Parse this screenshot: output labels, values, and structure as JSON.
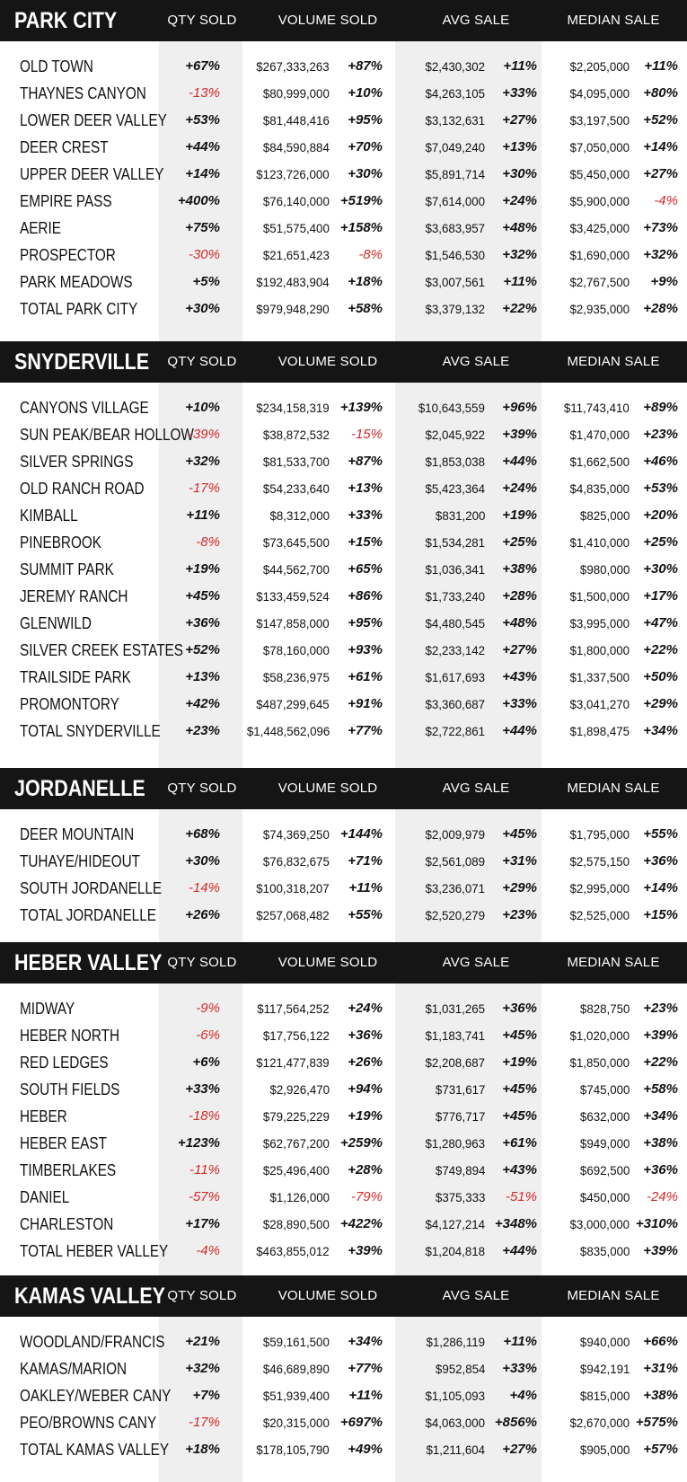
{
  "headers": {
    "qty": "QTY SOLD",
    "volume": "VOLUME SOLD",
    "avg": "AVG SALE",
    "median": "MEDIAN SALE"
  },
  "colors": {
    "header_bg": "#151515",
    "stripe": "#efefef",
    "negative": "#d42a2a"
  },
  "sections": [
    {
      "title": "PARK CITY",
      "rows": [
        {
          "name": "OLD TOWN",
          "qty": "+67%",
          "vol": "$267,333,263",
          "volp": "+87%",
          "avg": "$2,430,302",
          "avgp": "+11%",
          "med": "$2,205,000",
          "medp": "+11%"
        },
        {
          "name": "THAYNES CANYON",
          "qty": "-13%",
          "vol": "$80,999,000",
          "volp": "+10%",
          "avg": "$4,263,105",
          "avgp": "+33%",
          "med": "$4,095,000",
          "medp": "+80%"
        },
        {
          "name": "LOWER DEER VALLEY",
          "qty": "+53%",
          "vol": "$81,448,416",
          "volp": "+95%",
          "avg": "$3,132,631",
          "avgp": "+27%",
          "med": "$3,197,500",
          "medp": "+52%"
        },
        {
          "name": "DEER CREST",
          "qty": "+44%",
          "vol": "$84,590,884",
          "volp": "+70%",
          "avg": "$7,049,240",
          "avgp": "+13%",
          "med": "$7,050,000",
          "medp": "+14%"
        },
        {
          "name": "UPPER DEER VALLEY",
          "qty": "+14%",
          "vol": "$123,726,000",
          "volp": "+30%",
          "avg": "$5,891,714",
          "avgp": "+30%",
          "med": "$5,450,000",
          "medp": "+27%"
        },
        {
          "name": "EMPIRE PASS",
          "qty": "+400%",
          "vol": "$76,140,000",
          "volp": "+519%",
          "avg": "$7,614,000",
          "avgp": "+24%",
          "med": "$5,900,000",
          "medp": "-4%"
        },
        {
          "name": "AERIE",
          "qty": "+75%",
          "vol": "$51,575,400",
          "volp": "+158%",
          "avg": "$3,683,957",
          "avgp": "+48%",
          "med": "$3,425,000",
          "medp": "+73%"
        },
        {
          "name": "PROSPECTOR",
          "qty": "-30%",
          "vol": "$21,651,423",
          "volp": "-8%",
          "avg": "$1,546,530",
          "avgp": "+32%",
          "med": "$1,690,000",
          "medp": "+32%"
        },
        {
          "name": "PARK MEADOWS",
          "qty": "+5%",
          "vol": "$192,483,904",
          "volp": "+18%",
          "avg": "$3,007,561",
          "avgp": "+11%",
          "med": "$2,767,500",
          "medp": "+9%"
        },
        {
          "name": "TOTAL PARK CITY",
          "qty": "+30%",
          "vol": "$979,948,290",
          "volp": "+58%",
          "avg": "$3,379,132",
          "avgp": "+22%",
          "med": "$2,935,000",
          "medp": "+28%"
        }
      ]
    },
    {
      "title": "SNYDERVILLE",
      "rows": [
        {
          "name": "CANYONS VILLAGE",
          "qty": "+10%",
          "vol": "$234,158,319",
          "volp": "+139%",
          "avg": "$10,643,559",
          "avgp": "+96%",
          "med": "$11,743,410",
          "medp": "+89%"
        },
        {
          "name": "SUN PEAK/BEAR HOLLOW",
          "qty": "-39%",
          "vol": "$38,872,532",
          "volp": "-15%",
          "avg": "$2,045,922",
          "avgp": "+39%",
          "med": "$1,470,000",
          "medp": "+23%"
        },
        {
          "name": "SILVER SPRINGS",
          "qty": "+32%",
          "vol": "$81,533,700",
          "volp": "+87%",
          "avg": "$1,853,038",
          "avgp": "+44%",
          "med": "$1,662,500",
          "medp": "+46%"
        },
        {
          "name": "OLD RANCH ROAD",
          "qty": "-17%",
          "vol": "$54,233,640",
          "volp": "+13%",
          "avg": "$5,423,364",
          "avgp": "+24%",
          "med": "$4,835,000",
          "medp": "+53%"
        },
        {
          "name": "KIMBALL",
          "qty": "+11%",
          "vol": "$8,312,000",
          "volp": "+33%",
          "avg": "$831,200",
          "avgp": "+19%",
          "med": "$825,000",
          "medp": "+20%"
        },
        {
          "name": "PINEBROOK",
          "qty": "-8%",
          "vol": "$73,645,500",
          "volp": "+15%",
          "avg": "$1,534,281",
          "avgp": "+25%",
          "med": "$1,410,000",
          "medp": "+25%"
        },
        {
          "name": "SUMMIT PARK",
          "qty": "+19%",
          "vol": "$44,562,700",
          "volp": "+65%",
          "avg": "$1,036,341",
          "avgp": "+38%",
          "med": "$980,000",
          "medp": "+30%"
        },
        {
          "name": "JEREMY RANCH",
          "qty": "+45%",
          "vol": "$133,459,524",
          "volp": "+86%",
          "avg": "$1,733,240",
          "avgp": "+28%",
          "med": "$1,500,000",
          "medp": "+17%"
        },
        {
          "name": "GLENWILD",
          "qty": "+36%",
          "vol": "$147,858,000",
          "volp": "+95%",
          "avg": "$4,480,545",
          "avgp": "+48%",
          "med": "$3,995,000",
          "medp": "+47%"
        },
        {
          "name": "SILVER CREEK ESTATES",
          "qty": "+52%",
          "vol": "$78,160,000",
          "volp": "+93%",
          "avg": "$2,233,142",
          "avgp": "+27%",
          "med": "$1,800,000",
          "medp": "+22%"
        },
        {
          "name": "TRAILSIDE PARK",
          "qty": "+13%",
          "vol": "$58,236,975",
          "volp": "+61%",
          "avg": "$1,617,693",
          "avgp": "+43%",
          "med": "$1,337,500",
          "medp": "+50%"
        },
        {
          "name": "PROMONTORY",
          "qty": "+42%",
          "vol": "$487,299,645",
          "volp": "+91%",
          "avg": "$3,360,687",
          "avgp": "+33%",
          "med": "$3,041,270",
          "medp": "+29%"
        },
        {
          "name": "TOTAL SNYDERVILLE",
          "qty": "+23%",
          "vol": "$1,448,562,096",
          "volp": "+77%",
          "avg": "$2,722,861",
          "avgp": "+44%",
          "med": "$1,898,475",
          "medp": "+34%"
        }
      ]
    },
    {
      "title": "JORDANELLE",
      "rows": [
        {
          "name": "DEER MOUNTAIN",
          "qty": "+68%",
          "vol": "$74,369,250",
          "volp": "+144%",
          "avg": "$2,009,979",
          "avgp": "+45%",
          "med": "$1,795,000",
          "medp": "+55%"
        },
        {
          "name": "TUHAYE/HIDEOUT",
          "qty": "+30%",
          "vol": "$76,832,675",
          "volp": "+71%",
          "avg": "$2,561,089",
          "avgp": "+31%",
          "med": "$2,575,150",
          "medp": "+36%"
        },
        {
          "name": "SOUTH JORDANELLE",
          "qty": "-14%",
          "vol": "$100,318,207",
          "volp": "+11%",
          "avg": "$3,236,071",
          "avgp": "+29%",
          "med": "$2,995,000",
          "medp": "+14%"
        },
        {
          "name": "TOTAL JORDANELLE",
          "qty": "+26%",
          "vol": "$257,068,482",
          "volp": "+55%",
          "avg": "$2,520,279",
          "avgp": "+23%",
          "med": "$2,525,000",
          "medp": "+15%"
        }
      ]
    },
    {
      "title": "HEBER VALLEY",
      "rows": [
        {
          "name": "MIDWAY",
          "qty": "-9%",
          "vol": "$117,564,252",
          "volp": "+24%",
          "avg": "$1,031,265",
          "avgp": "+36%",
          "med": "$828,750",
          "medp": "+23%"
        },
        {
          "name": "HEBER NORTH",
          "qty": "-6%",
          "vol": "$17,756,122",
          "volp": "+36%",
          "avg": "$1,183,741",
          "avgp": "+45%",
          "med": "$1,020,000",
          "medp": "+39%"
        },
        {
          "name": "RED LEDGES",
          "qty": "+6%",
          "vol": "$121,477,839",
          "volp": "+26%",
          "avg": "$2,208,687",
          "avgp": "+19%",
          "med": "$1,850,000",
          "medp": "+22%"
        },
        {
          "name": "SOUTH FIELDS",
          "qty": "+33%",
          "vol": "$2,926,470",
          "volp": "+94%",
          "avg": "$731,617",
          "avgp": "+45%",
          "med": "$745,000",
          "medp": "+58%"
        },
        {
          "name": "HEBER",
          "qty": "-18%",
          "vol": "$79,225,229",
          "volp": "+19%",
          "avg": "$776,717",
          "avgp": "+45%",
          "med": "$632,000",
          "medp": "+34%"
        },
        {
          "name": "HEBER EAST",
          "qty": "+123%",
          "vol": "$62,767,200",
          "volp": "+259%",
          "avg": "$1,280,963",
          "avgp": "+61%",
          "med": "$949,000",
          "medp": "+38%"
        },
        {
          "name": "TIMBERLAKES",
          "qty": "-11%",
          "vol": "$25,496,400",
          "volp": "+28%",
          "avg": "$749,894",
          "avgp": "+43%",
          "med": "$692,500",
          "medp": "+36%"
        },
        {
          "name": "DANIEL",
          "qty": "-57%",
          "vol": "$1,126,000",
          "volp": "-79%",
          "avg": "$375,333",
          "avgp": "-51%",
          "med": "$450,000",
          "medp": "-24%"
        },
        {
          "name": "CHARLESTON",
          "qty": "+17%",
          "vol": "$28,890,500",
          "volp": "+422%",
          "avg": "$4,127,214",
          "avgp": "+348%",
          "med": "$3,000,000",
          "medp": "+310%"
        },
        {
          "name": "TOTAL HEBER VALLEY",
          "qty": "-4%",
          "vol": "$463,855,012",
          "volp": "+39%",
          "avg": "$1,204,818",
          "avgp": "+44%",
          "med": "$835,000",
          "medp": "+39%"
        }
      ]
    },
    {
      "title": "KAMAS VALLEY",
      "rows": [
        {
          "name": "WOODLAND/FRANCIS",
          "qty": "+21%",
          "vol": "$59,161,500",
          "volp": "+34%",
          "avg": "$1,286,119",
          "avgp": "+11%",
          "med": "$940,000",
          "medp": "+66%"
        },
        {
          "name": "KAMAS/MARION",
          "qty": "+32%",
          "vol": "$46,689,890",
          "volp": "+77%",
          "avg": "$952,854",
          "avgp": "+33%",
          "med": "$942,191",
          "medp": "+31%"
        },
        {
          "name": "OAKLEY/WEBER CANY",
          "qty": "+7%",
          "vol": "$51,939,400",
          "volp": "+11%",
          "avg": "$1,105,093",
          "avgp": "+4%",
          "med": "$815,000",
          "medp": "+38%"
        },
        {
          "name": "PEO/BROWNS CANY",
          "qty": "-17%",
          "vol": "$20,315,000",
          "volp": "+697%",
          "avg": "$4,063,000",
          "avgp": "+856%",
          "med": "$2,670,000",
          "medp": "+575%"
        },
        {
          "name": "TOTAL KAMAS VALLEY",
          "qty": "+18%",
          "vol": "$178,105,790",
          "volp": "+49%",
          "avg": "$1,211,604",
          "avgp": "+27%",
          "med": "$905,000",
          "medp": "+57%"
        }
      ]
    }
  ]
}
